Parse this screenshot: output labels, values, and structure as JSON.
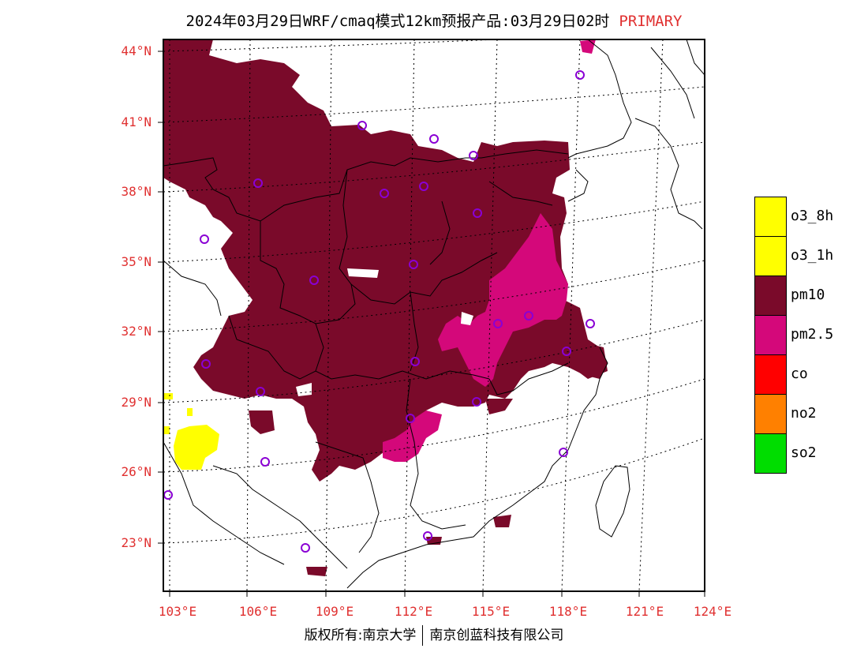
{
  "title": {
    "main": "2024年03月29日WRF/cmaq模式12km预报产品:03月29日02时",
    "badge": "PRIMARY"
  },
  "lat_ticks": [
    "44°N",
    "41°N",
    "38°N",
    "35°N",
    "32°N",
    "29°N",
    "26°N",
    "23°N"
  ],
  "lon_ticks": [
    "103°E",
    "106°E",
    "109°E",
    "112°E",
    "115°E",
    "118°E",
    "121°E",
    "124°E"
  ],
  "legend": [
    {
      "label": "o3_8h",
      "color": "#ffff00"
    },
    {
      "label": "o3_1h",
      "color": "#ffff00"
    },
    {
      "label": "pm10",
      "color": "#7a0a2a"
    },
    {
      "label": "pm2.5",
      "color": "#d4087a"
    },
    {
      "label": "co",
      "color": "#ff0000"
    },
    {
      "label": "no2",
      "color": "#ff8000"
    },
    {
      "label": "so2",
      "color": "#00dd00"
    }
  ],
  "footer": {
    "left": "版权所有:南京大学",
    "right": "南京创蓝科技有限公司"
  },
  "colors": {
    "pm10": "#7a0a2a",
    "pm25": "#d4087a",
    "o3": "#ffff00",
    "station": "#8a00d4",
    "tick_label": "#e03030"
  },
  "stations_count_note": ""
}
